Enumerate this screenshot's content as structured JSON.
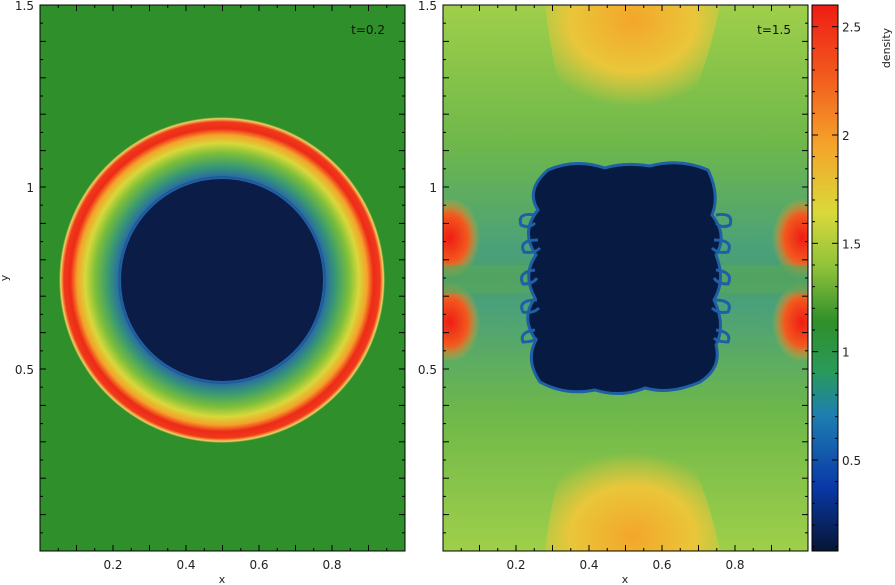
{
  "chart_data": {
    "type": "heatmap",
    "panels": [
      {
        "time_label": "t=0.2",
        "xlabel": "x",
        "ylabel": "y",
        "xlim": [
          0,
          1
        ],
        "ylim": [
          0,
          1.5
        ],
        "x_ticks": [
          0.2,
          0.4,
          0.6,
          0.8
        ],
        "x_tick_labels": [
          "0.2",
          "0.4",
          "0.6",
          "0.8"
        ],
        "y_ticks": [
          0.5,
          1,
          1.5
        ],
        "y_tick_labels": [
          "0.5",
          "1",
          "1.5"
        ],
        "background_density": 1.0,
        "features": {
          "center": [
            0.5,
            0.75
          ],
          "low_density_bubble_radius": 0.28,
          "low_density_value": 0.1,
          "shell_outer_radius": 0.44,
          "shell_peak_density": 2.5
        }
      },
      {
        "time_label": "t=1.5",
        "xlabel": "x",
        "ylabel": "",
        "xlim": [
          0,
          1
        ],
        "ylim": [
          0,
          1.5
        ],
        "x_ticks": [
          0.2,
          0.4,
          0.6,
          0.8
        ],
        "x_tick_labels": [
          "0.2",
          "0.4",
          "0.6",
          "0.8"
        ],
        "y_ticks": [
          0.5,
          1,
          1.5
        ],
        "y_tick_labels": [
          "0.5",
          "1",
          "1.5"
        ],
        "background_density": 1.2,
        "features": {
          "center": [
            0.5,
            0.75
          ],
          "low_density_region_x": [
            0.2,
            0.78
          ],
          "low_density_region_y": [
            0.43,
            1.07
          ],
          "low_density_value": 0.1,
          "high_density_edges": 2.4
        }
      }
    ],
    "colorbar": {
      "label": "density",
      "range": [
        0.08,
        2.6
      ],
      "ticks": [
        0.5,
        1,
        1.5,
        2,
        2.5
      ],
      "tick_labels": [
        "0.5",
        "1",
        "1.5",
        "2",
        "2.5"
      ],
      "colormap": [
        "#061535",
        "#0a3aa8",
        "#1e7fb0",
        "#2a9a5a",
        "#2f8f2a",
        "#8fc23a",
        "#d9d93a",
        "#f4a62a",
        "#f25a1e",
        "#ef1c14"
      ]
    }
  }
}
